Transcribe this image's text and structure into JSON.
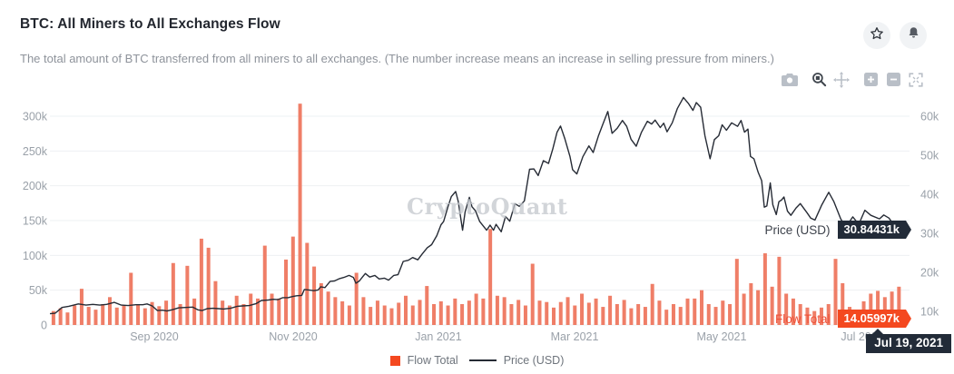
{
  "header": {
    "title": "BTC: All Miners to All Exchanges Flow",
    "subtitle": "The total amount of BTC transferred from all miners to all exchanges. (The number increase means an increase in selling pressure from miners.)"
  },
  "actions": {
    "favorite_icon": "star",
    "alert_icon": "bell"
  },
  "toolbar": {
    "icons": [
      "camera",
      "box-zoom",
      "pan",
      "zoom-in",
      "zoom-out",
      "reset-axes"
    ]
  },
  "watermark": "CryptoQuant",
  "badges": {
    "price_label": "Price (USD)",
    "price_value": "30.84431k",
    "flow_label": "Flow Total",
    "flow_value": "14.05997k",
    "date": "Jul 19, 2021"
  },
  "legend": [
    {
      "label": "Flow Total",
      "color": "#f4481f"
    },
    {
      "label": "Price (USD)",
      "color": "#262b35"
    }
  ],
  "colors": {
    "bar": "#ef7e67",
    "price_line": "#262b35",
    "grid": "#eef0f3",
    "axis_text": "#9aa1a9",
    "badge_dark": "#222b38",
    "badge_red": "#f4481f"
  },
  "chart_data": {
    "type": "combo",
    "title": "BTC: All Miners to All Exchanges Flow",
    "x_axis": {
      "range": [
        "Jul 21, 2020",
        "Jul 19, 2021"
      ],
      "ticks": [
        {
          "label": "Sep 2020",
          "pos": 0.1214
        },
        {
          "label": "Nov 2020",
          "pos": 0.283
        },
        {
          "label": "Jan 2021",
          "pos": 0.4519
        },
        {
          "label": "Mar 2021",
          "pos": 0.6104
        },
        {
          "label": "May 2021",
          "pos": 0.7814
        },
        {
          "label": "Jul 2021",
          "pos": 0.9451
        }
      ]
    },
    "y_left": {
      "name": "Flow Total (BTC)",
      "ticks": [
        "0",
        "50k",
        "100k",
        "150k",
        "200k",
        "250k",
        "300k"
      ],
      "values_k": [
        0,
        50,
        100,
        150,
        200,
        250,
        300
      ],
      "lim_k": [
        0,
        300
      ]
    },
    "y_right": {
      "name": "Price (USD)",
      "ticks": [
        "10k",
        "20k",
        "30k",
        "40k",
        "50k",
        "60k"
      ],
      "values_k": [
        10,
        20,
        30,
        40,
        50,
        60
      ]
    },
    "grid": "horizontal-only",
    "legend_position": "bottom-center",
    "series": [
      {
        "name": "Flow Total",
        "type": "bar",
        "unit": "k BTC",
        "color": "#ef7e67",
        "values": [
          20,
          24,
          18,
          28,
          52,
          26,
          22,
          30,
          40,
          25,
          28,
          75,
          30,
          24,
          33,
          27,
          35,
          89,
          30,
          85,
          38,
          124,
          111,
          63,
          35,
          28,
          42,
          30,
          45,
          38,
          114,
          45,
          38,
          94,
          127,
          318,
          118,
          84,
          60,
          48,
          40,
          34,
          28,
          75,
          40,
          26,
          35,
          28,
          24,
          32,
          42,
          28,
          36,
          56,
          30,
          34,
          28,
          38,
          30,
          35,
          45,
          38,
          138,
          42,
          40,
          30,
          36,
          28,
          88,
          35,
          33,
          25,
          33,
          40,
          28,
          45,
          32,
          38,
          26,
          42,
          30,
          36,
          24,
          30,
          26,
          59,
          35,
          22,
          30,
          26,
          38,
          38,
          50,
          30,
          26,
          35,
          30,
          95,
          45,
          60,
          50,
          103,
          55,
          98,
          45,
          38,
          30,
          25,
          20,
          25,
          30,
          95,
          60,
          26,
          20,
          34,
          45,
          49,
          40,
          48,
          55,
          14.06
        ]
      },
      {
        "name": "Price (USD)",
        "type": "line",
        "unit": "k USD",
        "color": "#262b35",
        "points": [
          [
            0.0,
            9.4
          ],
          [
            0.006,
            9.5
          ],
          [
            0.014,
            11.0
          ],
          [
            0.022,
            11.3
          ],
          [
            0.033,
            11.9
          ],
          [
            0.042,
            11.6
          ],
          [
            0.05,
            11.8
          ],
          [
            0.058,
            11.6
          ],
          [
            0.066,
            11.8
          ],
          [
            0.075,
            12.3
          ],
          [
            0.083,
            11.6
          ],
          [
            0.091,
            11.5
          ],
          [
            0.1,
            11.7
          ],
          [
            0.108,
            11.7
          ],
          [
            0.113,
            11.9
          ],
          [
            0.119,
            11.4
          ],
          [
            0.125,
            10.2
          ],
          [
            0.131,
            10.3
          ],
          [
            0.136,
            10.1
          ],
          [
            0.142,
            10.4
          ],
          [
            0.15,
            10.9
          ],
          [
            0.158,
            11.0
          ],
          [
            0.166,
            11.1
          ],
          [
            0.172,
            10.4
          ],
          [
            0.177,
            10.2
          ],
          [
            0.183,
            10.7
          ],
          [
            0.19,
            10.8
          ],
          [
            0.196,
            10.7
          ],
          [
            0.202,
            10.6
          ],
          [
            0.21,
            10.8
          ],
          [
            0.218,
            11.3
          ],
          [
            0.224,
            11.4
          ],
          [
            0.232,
            11.5
          ],
          [
            0.24,
            12.0
          ],
          [
            0.246,
            12.8
          ],
          [
            0.254,
            12.9
          ],
          [
            0.26,
            13.1
          ],
          [
            0.265,
            13.0
          ],
          [
            0.271,
            13.5
          ],
          [
            0.277,
            13.5
          ],
          [
            0.282,
            13.8
          ],
          [
            0.287,
            14.0
          ],
          [
            0.293,
            14.1
          ],
          [
            0.296,
            15.6
          ],
          [
            0.301,
            15.5
          ],
          [
            0.307,
            15.3
          ],
          [
            0.312,
            15.5
          ],
          [
            0.315,
            16.3
          ],
          [
            0.32,
            16.1
          ],
          [
            0.326,
            17.7
          ],
          [
            0.331,
            17.8
          ],
          [
            0.337,
            18.4
          ],
          [
            0.342,
            18.7
          ],
          [
            0.348,
            19.2
          ],
          [
            0.353,
            18.7
          ],
          [
            0.356,
            17.2
          ],
          [
            0.36,
            17.8
          ],
          [
            0.364,
            18.9
          ],
          [
            0.367,
            19.7
          ],
          [
            0.372,
            18.8
          ],
          [
            0.378,
            19.2
          ],
          [
            0.383,
            18.3
          ],
          [
            0.389,
            18.5
          ],
          [
            0.394,
            18.0
          ],
          [
            0.4,
            19.2
          ],
          [
            0.405,
            19.4
          ],
          [
            0.411,
            22.8
          ],
          [
            0.417,
            23.1
          ],
          [
            0.422,
            23.8
          ],
          [
            0.428,
            23.2
          ],
          [
            0.433,
            24.7
          ],
          [
            0.439,
            26.3
          ],
          [
            0.444,
            27.1
          ],
          [
            0.45,
            29.4
          ],
          [
            0.455,
            32.2
          ],
          [
            0.458,
            33.0
          ],
          [
            0.463,
            36.8
          ],
          [
            0.467,
            39.4
          ],
          [
            0.472,
            40.7
          ],
          [
            0.475,
            38.2
          ],
          [
            0.48,
            30.8
          ],
          [
            0.483,
            35.5
          ],
          [
            0.488,
            39.2
          ],
          [
            0.491,
            36.8
          ],
          [
            0.495,
            35.8
          ],
          [
            0.5,
            33.0
          ],
          [
            0.508,
            30.8
          ],
          [
            0.512,
            32.1
          ],
          [
            0.516,
            30.8
          ],
          [
            0.519,
            32.3
          ],
          [
            0.525,
            30.4
          ],
          [
            0.53,
            34.3
          ],
          [
            0.535,
            33.1
          ],
          [
            0.541,
            37.6
          ],
          [
            0.546,
            36.9
          ],
          [
            0.552,
            38.3
          ],
          [
            0.558,
            46.4
          ],
          [
            0.563,
            46.5
          ],
          [
            0.568,
            44.8
          ],
          [
            0.574,
            48.6
          ],
          [
            0.58,
            47.9
          ],
          [
            0.585,
            51.6
          ],
          [
            0.59,
            55.9
          ],
          [
            0.594,
            57.5
          ],
          [
            0.599,
            54.2
          ],
          [
            0.605,
            49.7
          ],
          [
            0.608,
            46.3
          ],
          [
            0.613,
            45.2
          ],
          [
            0.62,
            49.6
          ],
          [
            0.627,
            52.4
          ],
          [
            0.632,
            50.7
          ],
          [
            0.638,
            54.9
          ],
          [
            0.643,
            57.8
          ],
          [
            0.649,
            61.2
          ],
          [
            0.654,
            55.6
          ],
          [
            0.66,
            56.9
          ],
          [
            0.666,
            58.9
          ],
          [
            0.671,
            57.4
          ],
          [
            0.676,
            54.1
          ],
          [
            0.682,
            52.3
          ],
          [
            0.688,
            55.8
          ],
          [
            0.695,
            58.7
          ],
          [
            0.7,
            58.0
          ],
          [
            0.704,
            59.0
          ],
          [
            0.71,
            57.1
          ],
          [
            0.714,
            58.2
          ],
          [
            0.718,
            56.0
          ],
          [
            0.724,
            58.3
          ],
          [
            0.73,
            62.0
          ],
          [
            0.737,
            64.8
          ],
          [
            0.743,
            63.2
          ],
          [
            0.748,
            61.5
          ],
          [
            0.752,
            63.5
          ],
          [
            0.757,
            62.3
          ],
          [
            0.762,
            55.0
          ],
          [
            0.768,
            49.1
          ],
          [
            0.773,
            54.0
          ],
          [
            0.778,
            55.0
          ],
          [
            0.782,
            57.8
          ],
          [
            0.787,
            56.4
          ],
          [
            0.793,
            58.3
          ],
          [
            0.8,
            57.4
          ],
          [
            0.804,
            58.9
          ],
          [
            0.808,
            55.9
          ],
          [
            0.812,
            56.7
          ],
          [
            0.815,
            49.7
          ],
          [
            0.819,
            49.1
          ],
          [
            0.824,
            45.6
          ],
          [
            0.828,
            43.5
          ],
          [
            0.831,
            36.7
          ],
          [
            0.834,
            37.0
          ],
          [
            0.838,
            42.9
          ],
          [
            0.841,
            37.3
          ],
          [
            0.845,
            34.8
          ],
          [
            0.848,
            38.1
          ],
          [
            0.851,
            38.5
          ],
          [
            0.854,
            39.3
          ],
          [
            0.858,
            35.7
          ],
          [
            0.862,
            34.6
          ],
          [
            0.868,
            36.5
          ],
          [
            0.873,
            37.6
          ],
          [
            0.88,
            35.5
          ],
          [
            0.885,
            33.9
          ],
          [
            0.89,
            33.4
          ],
          [
            0.898,
            37.3
          ],
          [
            0.906,
            40.5
          ],
          [
            0.912,
            38.1
          ],
          [
            0.92,
            33.7
          ],
          [
            0.926,
            31.6
          ],
          [
            0.934,
            34.2
          ],
          [
            0.941,
            32.3
          ],
          [
            0.948,
            35.9
          ],
          [
            0.955,
            34.6
          ],
          [
            0.965,
            33.7
          ],
          [
            0.97,
            34.7
          ],
          [
            0.976,
            33.9
          ],
          [
            0.982,
            32.1
          ],
          [
            0.987,
            32.8
          ],
          [
            0.992,
            31.6
          ],
          [
            0.996,
            31.8
          ],
          [
            1.0,
            30.84431
          ]
        ]
      }
    ],
    "last_values": {
      "date": "Jul 19, 2021",
      "flow_total": "14.05997k",
      "price_usd": "30.84431k"
    }
  }
}
